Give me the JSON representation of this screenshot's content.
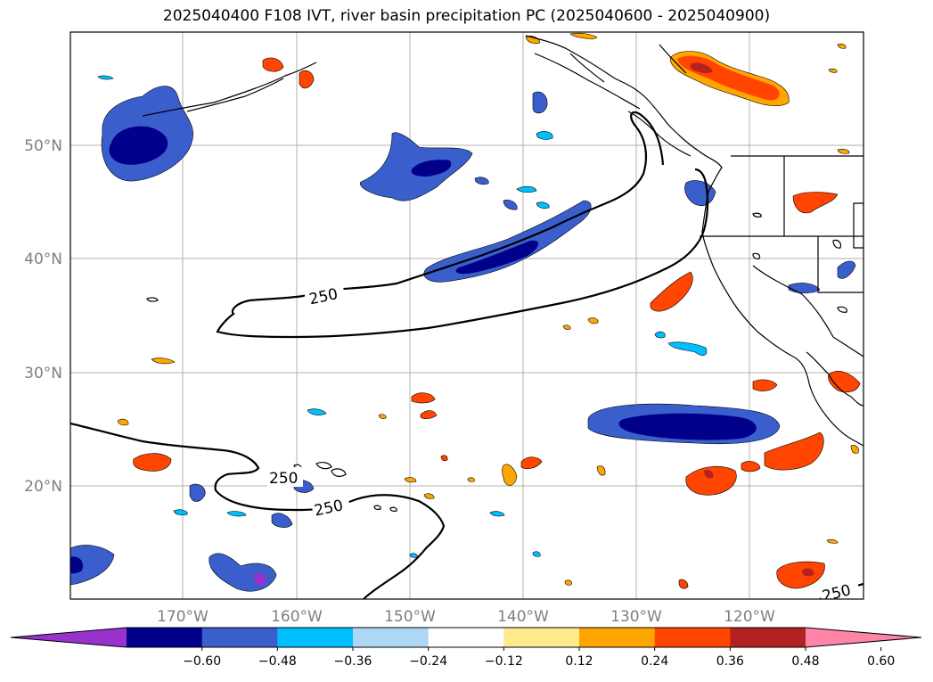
{
  "title": "2025040400 F108 IVT, river basin precipitation PC (2025040600 - 2025040900)",
  "map": {
    "lat_labels": [
      "50°N",
      "40°N",
      "30°N",
      "20°N"
    ],
    "lon_labels": [
      "170°W",
      "160°W",
      "150°W",
      "140°W",
      "130°W",
      "120°W"
    ],
    "contour_label": "250",
    "contour_levels": [
      "250",
      "250",
      "250",
      "250"
    ],
    "gridlines": true
  },
  "colorbar": {
    "ticks": [
      "−0.60",
      "−0.48",
      "−0.36",
      "−0.24",
      "−0.12",
      "0.12",
      "0.24",
      "0.36",
      "0.48",
      "0.60"
    ],
    "colors": [
      "#9932cc",
      "#00008b",
      "#3a5fcd",
      "#00bfff",
      "#add8f5",
      "#ffffff",
      "#ffea8e",
      "#ffa500",
      "#ff4500",
      "#b22222",
      "#ff85a8"
    ],
    "extend": "both"
  }
}
